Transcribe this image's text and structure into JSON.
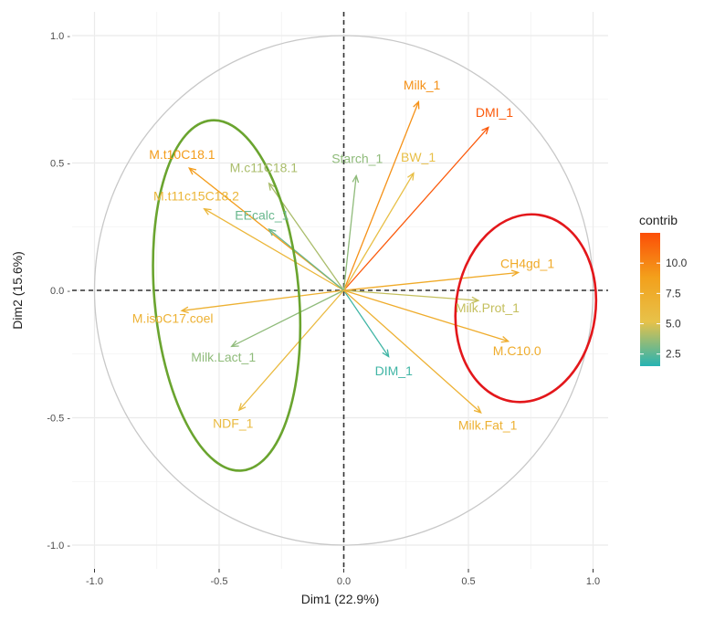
{
  "chart_data": {
    "type": "scatter",
    "subtype": "pca-variable-correlation-circle",
    "xlabel": "Dim1 (22.9%)",
    "ylabel": "Dim2 (15.6%)",
    "xlim": [
      -1.1,
      1.1
    ],
    "ylim": [
      -1.1,
      1.1
    ],
    "x_ticks": [
      -1.0,
      -0.5,
      0.0,
      0.5,
      1.0
    ],
    "y_ticks": [
      -1.0,
      -0.5,
      0.0,
      0.5,
      1.0
    ],
    "x_tick_labels": [
      "-1.0",
      "-0.5",
      "0.0",
      "0.5",
      "1.0"
    ],
    "y_tick_labels": [
      "-1.0 -",
      "-0.5 -",
      "0.0 -",
      "0.5 -",
      "1.0 -"
    ],
    "grid": true,
    "unit_circle": true,
    "color_scale": {
      "title": "contrib",
      "ticks": [
        2.5,
        5.0,
        7.5,
        10.0
      ],
      "tick_labels": [
        "2.5",
        "5.0",
        "7.5",
        "10.0"
      ],
      "range": [
        1.5,
        12.5
      ],
      "colors": [
        "#26b3b3",
        "#e7c24a",
        "#f3a01b",
        "#fc4e07"
      ],
      "placement": "right"
    },
    "variables": [
      {
        "name": "Milk_1",
        "x": 0.3,
        "y": 0.74,
        "contrib": 9.5
      },
      {
        "name": "DMI_1",
        "x": 0.58,
        "y": 0.64,
        "contrib": 12.0
      },
      {
        "name": "BW_1",
        "x": 0.28,
        "y": 0.46,
        "contrib": 5.5
      },
      {
        "name": "Starch_1",
        "x": 0.05,
        "y": 0.45,
        "contrib": 3.5
      },
      {
        "name": "M.t10C18.1",
        "x": -0.62,
        "y": 0.48,
        "contrib": 9.0
      },
      {
        "name": "M.c11C18.1",
        "x": -0.3,
        "y": 0.42,
        "contrib": 4.0
      },
      {
        "name": "M.t11c15C18.2",
        "x": -0.56,
        "y": 0.32,
        "contrib": 6.5
      },
      {
        "name": "EEcalc_1",
        "x": -0.3,
        "y": 0.24,
        "contrib": 2.8
      },
      {
        "name": "CH4gd_1",
        "x": 0.7,
        "y": 0.07,
        "contrib": 7.8
      },
      {
        "name": "Milk.Prot_1",
        "x": 0.54,
        "y": -0.04,
        "contrib": 4.5
      },
      {
        "name": "M.C10.0",
        "x": 0.66,
        "y": -0.2,
        "contrib": 7.5
      },
      {
        "name": "M.isoC17.coel",
        "x": -0.65,
        "y": -0.08,
        "contrib": 7.0
      },
      {
        "name": "Milk.Lact_1",
        "x": -0.45,
        "y": -0.22,
        "contrib": 3.5
      },
      {
        "name": "DIM_1",
        "x": 0.18,
        "y": -0.26,
        "contrib": 2.0
      },
      {
        "name": "Milk.Fat_1",
        "x": 0.55,
        "y": -0.48,
        "contrib": 7.0
      },
      {
        "name": "NDF_1",
        "x": -0.42,
        "y": -0.47,
        "contrib": 6.0
      }
    ],
    "annotations": [
      {
        "type": "ellipse",
        "color": "#6aa42f",
        "cx": -0.47,
        "cy": -0.02,
        "rx": 0.29,
        "ry": 0.69,
        "rotate": -5
      },
      {
        "type": "ellipse",
        "color": "#e3171b",
        "cx": 0.73,
        "cy": -0.07,
        "rx": 0.28,
        "ry": 0.37,
        "rotate": 8
      }
    ]
  }
}
